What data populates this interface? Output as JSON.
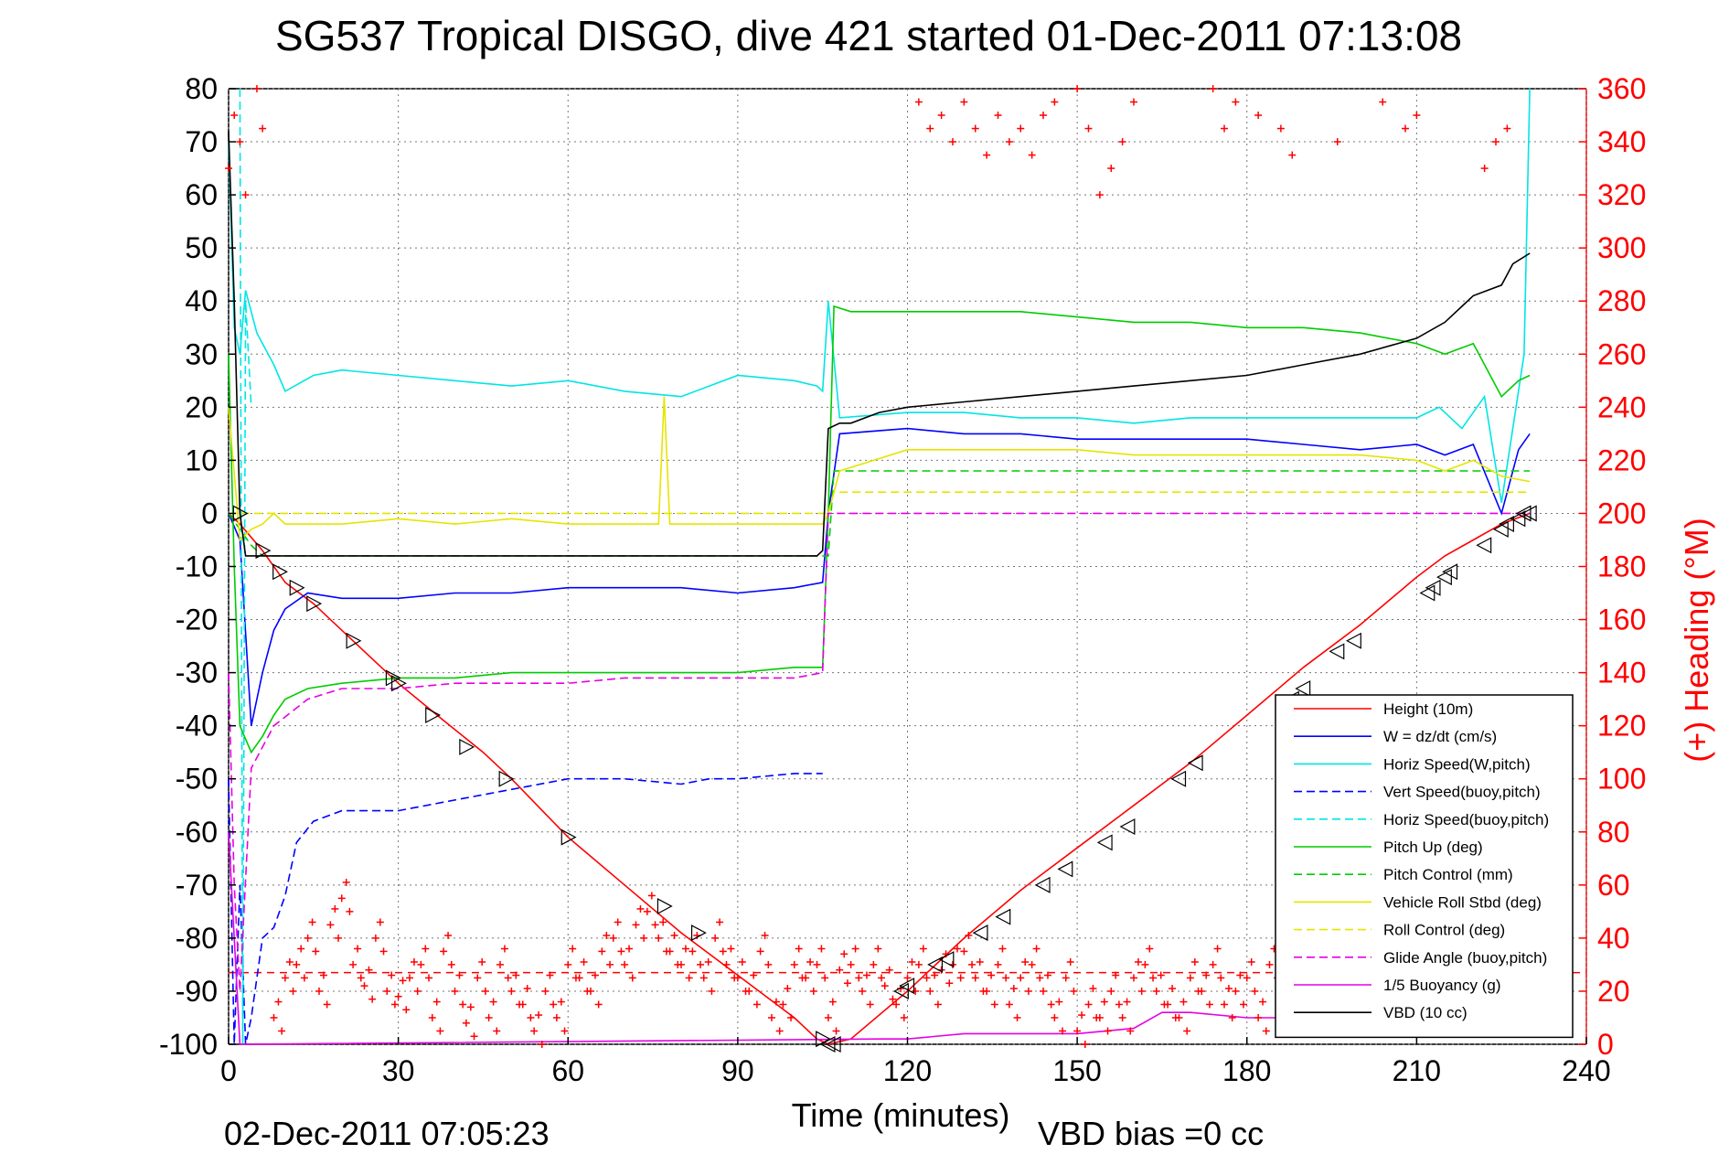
{
  "chart_data": {
    "type": "line",
    "title": "SG537 Tropical DISGO, dive 421 started 01-Dec-2011 07:13:08",
    "xlabel": "Time (minutes)",
    "ylabel": "",
    "y2label": "(+) Heading (°M)",
    "xlim": [
      0,
      240
    ],
    "ylim": [
      -100,
      80
    ],
    "y2lim": [
      0,
      360
    ],
    "x_ticks": [
      "0",
      "30",
      "60",
      "90",
      "120",
      "150",
      "180",
      "210",
      "240"
    ],
    "y_ticks": [
      "80",
      "70",
      "60",
      "50",
      "40",
      "30",
      "20",
      "10",
      "0",
      "-10",
      "-20",
      "-30",
      "-40",
      "-50",
      "-60",
      "-70",
      "-80",
      "-90",
      "-100"
    ],
    "y2_ticks": [
      "360",
      "340",
      "320",
      "300",
      "280",
      "260",
      "240",
      "220",
      "200",
      "180",
      "160",
      "140",
      "120",
      "100",
      "80",
      "60",
      "40",
      "20",
      "0"
    ],
    "grid": true,
    "legend_position": "bottom-right",
    "footer_left": "02-Dec-2011 07:05:23",
    "footer_right": "VBD bias =0 cc",
    "series": [
      {
        "name": "Height (10m)",
        "color": "#ff0000",
        "style": "solid",
        "x": [
          0,
          2,
          6,
          10,
          15,
          22,
          30,
          38,
          45,
          50,
          60,
          70,
          80,
          90,
          100,
          104,
          106,
          110,
          120,
          130,
          140,
          150,
          160,
          170,
          180,
          190,
          200,
          210,
          215,
          220,
          225,
          230
        ],
        "y": [
          0,
          -2,
          -7,
          -13,
          -17,
          -24,
          -32,
          -39,
          -45,
          -50,
          -61,
          -70,
          -79,
          -87,
          -95,
          -99,
          -100,
          -99,
          -90,
          -80,
          -71,
          -63,
          -55,
          -47,
          -38,
          -29,
          -21,
          -12,
          -8,
          -5,
          -2,
          0
        ]
      },
      {
        "name": "W = dz/dt (cm/s)",
        "color": "#0000ff",
        "style": "solid",
        "x": [
          0,
          2,
          4,
          6,
          8,
          10,
          14,
          20,
          30,
          40,
          50,
          60,
          70,
          80,
          90,
          100,
          105,
          106,
          108,
          120,
          130,
          140,
          150,
          160,
          170,
          180,
          190,
          200,
          210,
          215,
          220,
          225,
          228,
          230
        ],
        "y": [
          0,
          -5,
          -40,
          -30,
          -22,
          -18,
          -15,
          -16,
          -16,
          -15,
          -15,
          -14,
          -14,
          -14,
          -15,
          -14,
          -13,
          0,
          15,
          16,
          15,
          15,
          14,
          14,
          14,
          14,
          13,
          12,
          13,
          11,
          13,
          0,
          12,
          15
        ]
      },
      {
        "name": "Horiz Speed(W,pitch)",
        "color": "#00e5e5",
        "style": "solid",
        "x": [
          0,
          1,
          2,
          3,
          5,
          8,
          10,
          15,
          20,
          30,
          40,
          50,
          60,
          70,
          80,
          90,
          100,
          104,
          105,
          106,
          108,
          120,
          130,
          140,
          150,
          160,
          170,
          180,
          190,
          200,
          210,
          214,
          218,
          222,
          225,
          229,
          230
        ],
        "y": [
          70,
          35,
          30,
          42,
          34,
          28,
          23,
          26,
          27,
          26,
          25,
          24,
          25,
          23,
          22,
          26,
          25,
          24,
          23,
          40,
          18,
          19,
          19,
          18,
          18,
          17,
          18,
          18,
          18,
          18,
          18,
          20,
          16,
          22,
          2,
          30,
          80
        ]
      },
      {
        "name": "Vert Speed(buoy,pitch)",
        "color": "#0000ff",
        "style": "dashed",
        "x": [
          0,
          1,
          2,
          3,
          4,
          6,
          8,
          10,
          12,
          15,
          20,
          30,
          40,
          50,
          60,
          70,
          80,
          85,
          90,
          100,
          105
        ],
        "y": [
          -50,
          -100,
          -70,
          -100,
          -95,
          -80,
          -78,
          -72,
          -62,
          -58,
          -56,
          -56,
          -54,
          -52,
          -50,
          -50,
          -51,
          -50,
          -50,
          -49,
          -49
        ]
      },
      {
        "name": "Horiz Speed(buoy,pitch)",
        "color": "#00e5e5",
        "style": "dashed",
        "x": [
          2,
          2.5,
          3,
          4
        ],
        "y": [
          80,
          -100,
          40,
          20
        ]
      },
      {
        "name": "Pitch Up (deg)",
        "color": "#00cc00",
        "style": "solid",
        "x": [
          0,
          1,
          2,
          4,
          6,
          8,
          10,
          14,
          20,
          30,
          40,
          50,
          60,
          70,
          80,
          90,
          100,
          105,
          106,
          107,
          110,
          120,
          130,
          140,
          150,
          160,
          170,
          180,
          190,
          200,
          210,
          215,
          220,
          225,
          228,
          230
        ],
        "y": [
          30,
          -10,
          -40,
          -45,
          -42,
          -38,
          -35,
          -33,
          -32,
          -31,
          -31,
          -30,
          -30,
          -30,
          -30,
          -30,
          -29,
          -29,
          0,
          39,
          38,
          38,
          38,
          38,
          37,
          36,
          36,
          35,
          35,
          34,
          32,
          30,
          32,
          22,
          25,
          26
        ]
      },
      {
        "name": "Pitch Control (mm)",
        "color": "#00cc00",
        "style": "dashed",
        "x": [
          0,
          2,
          4,
          6,
          105,
          106,
          107,
          230
        ],
        "y": [
          0,
          -3,
          -6,
          -8,
          -8,
          -8,
          8,
          8
        ]
      },
      {
        "name": "Vehicle Roll Stbd (deg)",
        "color": "#e5e500",
        "style": "solid",
        "x": [
          0,
          2,
          4,
          6,
          8,
          10,
          20,
          30,
          40,
          50,
          60,
          70,
          76,
          77,
          78,
          90,
          100,
          105,
          106,
          108,
          120,
          130,
          140,
          150,
          160,
          170,
          180,
          190,
          200,
          210,
          215,
          220,
          225,
          230
        ],
        "y": [
          20,
          -5,
          -3,
          -2,
          0,
          -2,
          -2,
          -1,
          -2,
          -1,
          -2,
          -2,
          -2,
          22,
          -2,
          -2,
          -2,
          -2,
          0,
          8,
          12,
          12,
          12,
          12,
          11,
          11,
          11,
          11,
          11,
          10,
          8,
          10,
          7,
          6
        ]
      },
      {
        "name": "Roll Control (deg)",
        "color": "#e5e500",
        "style": "dashed",
        "x": [
          0,
          5,
          105,
          106,
          107,
          230
        ],
        "y": [
          0,
          0,
          0,
          0,
          4,
          4
        ]
      },
      {
        "name": "Glide Angle (buoy,pitch)",
        "color": "#e500e5",
        "style": "dashed",
        "x": [
          0,
          1,
          2,
          4,
          8,
          14,
          20,
          30,
          40,
          50,
          60,
          70,
          80,
          90,
          100,
          105,
          106,
          107,
          230
        ],
        "y": [
          -30,
          -70,
          -90,
          -48,
          -40,
          -35,
          -33,
          -33,
          -32,
          -32,
          -32,
          -31,
          -31,
          -31,
          -31,
          -30,
          0,
          0,
          0
        ]
      },
      {
        "name": "1/5 Buoyancy (g)",
        "color": "#e500e5",
        "style": "solid",
        "x": [
          0,
          1,
          2,
          3,
          115,
          120,
          130,
          140,
          150,
          160,
          165,
          170,
          180,
          190,
          200
        ],
        "y": [
          -60,
          -80,
          -100,
          -100,
          -99,
          -99,
          -98,
          -98,
          -98,
          -97,
          -94,
          -94,
          -95,
          -95,
          -96
        ]
      },
      {
        "name": "VBD (10 cc)",
        "color": "#000000",
        "style": "solid",
        "x": [
          0,
          1,
          2,
          3,
          104,
          105,
          106,
          108,
          110,
          115,
          120,
          130,
          140,
          150,
          160,
          170,
          180,
          190,
          200,
          210,
          215,
          218,
          220,
          225,
          226,
          227,
          230
        ],
        "y": [
          72,
          40,
          0,
          -8,
          -8,
          -7,
          16,
          17,
          17,
          19,
          20,
          21,
          22,
          23,
          24,
          25,
          26,
          28,
          30,
          33,
          36,
          39,
          41,
          43,
          45,
          47,
          49
        ]
      }
    ],
    "heading": {
      "name": "Heading",
      "color": "#ff0000",
      "axis": "right",
      "mean_line": 27,
      "points_note_only_for_rendering": false,
      "x": [
        0,
        1,
        2,
        3,
        5,
        6,
        8,
        10,
        12,
        14,
        16,
        18,
        20,
        22,
        24,
        26,
        28,
        30,
        32,
        34,
        36,
        38,
        40,
        42,
        44,
        46,
        48,
        50,
        52,
        54,
        56,
        58,
        60,
        62,
        64,
        66,
        68,
        70,
        72,
        74,
        76,
        78,
        80,
        82,
        84,
        86,
        88,
        90,
        92,
        94,
        96,
        98,
        100,
        102,
        104,
        106,
        108,
        110,
        112,
        114,
        116,
        118,
        120,
        122,
        124,
        126,
        128,
        130,
        132,
        134,
        136,
        138,
        140,
        142,
        144,
        146,
        148,
        150,
        152,
        154,
        156,
        158,
        160,
        162,
        164,
        166,
        168,
        170,
        172,
        174,
        176,
        178,
        180,
        182,
        184,
        186,
        188,
        190,
        192,
        194,
        196,
        198,
        200,
        202,
        204,
        206,
        208,
        210,
        212,
        214,
        216,
        218,
        220,
        222,
        224,
        226,
        228,
        230
      ],
      "y": [
        330,
        350,
        340,
        320,
        360,
        345,
        10,
        25,
        30,
        40,
        20,
        45,
        55,
        30,
        22,
        40,
        20,
        18,
        25,
        30,
        10,
        35,
        20,
        8,
        25,
        10,
        30,
        20,
        15,
        5,
        20,
        10,
        30,
        25,
        20,
        35,
        40,
        30,
        45,
        50,
        40,
        35,
        30,
        35,
        25,
        40,
        30,
        25,
        20,
        35,
        10,
        15,
        30,
        25,
        30,
        10,
        28,
        30,
        20,
        30,
        22,
        15,
        25,
        30,
        20,
        28,
        30,
        35,
        25,
        20,
        30,
        15,
        25,
        30,
        20,
        10,
        25,
        5,
        15,
        10,
        20,
        10,
        25,
        30,
        20,
        15,
        10,
        25,
        20,
        30,
        15,
        20,
        25,
        10,
        30,
        25,
        20,
        15,
        20,
        10,
        25,
        30,
        20,
        15,
        10,
        25,
        30,
        20,
        15,
        25,
        10,
        30,
        20,
        25,
        15,
        30,
        10,
        20
      ]
    },
    "heading_upper": {
      "x": [
        122,
        124,
        126,
        128,
        130,
        132,
        134,
        136,
        138,
        140,
        142,
        144,
        146,
        150,
        152,
        154,
        156,
        158,
        160,
        174,
        176,
        178,
        182,
        186,
        188,
        196,
        204,
        208,
        210,
        222,
        224,
        226
      ],
      "y": [
        355,
        345,
        350,
        340,
        355,
        345,
        335,
        350,
        340,
        345,
        335,
        350,
        355,
        360,
        345,
        320,
        330,
        340,
        355,
        360,
        345,
        355,
        350,
        345,
        335,
        340,
        355,
        345,
        350,
        330,
        340,
        345
      ]
    },
    "markers": {
      "description": "triangle markers on the height track",
      "x": [
        2,
        6,
        9,
        12,
        15,
        22,
        29,
        30,
        36,
        42,
        49,
        60,
        77,
        83,
        105,
        106,
        107,
        119,
        120,
        125,
        127,
        133,
        137,
        144,
        148,
        155,
        159,
        168,
        171,
        188,
        190,
        196,
        199,
        212,
        213,
        215,
        216,
        222,
        225,
        226,
        228,
        229,
        230
      ],
      "y": [
        0,
        -7,
        -11,
        -14,
        -17,
        -24,
        -31,
        -32,
        -38,
        -44,
        -50,
        -61,
        -74,
        -79,
        -99,
        -100,
        -100,
        -90,
        -89,
        -85,
        -84,
        -79,
        -76,
        -70,
        -67,
        -62,
        -59,
        -50,
        -47,
        -35,
        -33,
        -26,
        -24,
        -15,
        -14,
        -12,
        -11,
        -6,
        -3,
        -2,
        -1,
        0,
        0
      ]
    }
  }
}
